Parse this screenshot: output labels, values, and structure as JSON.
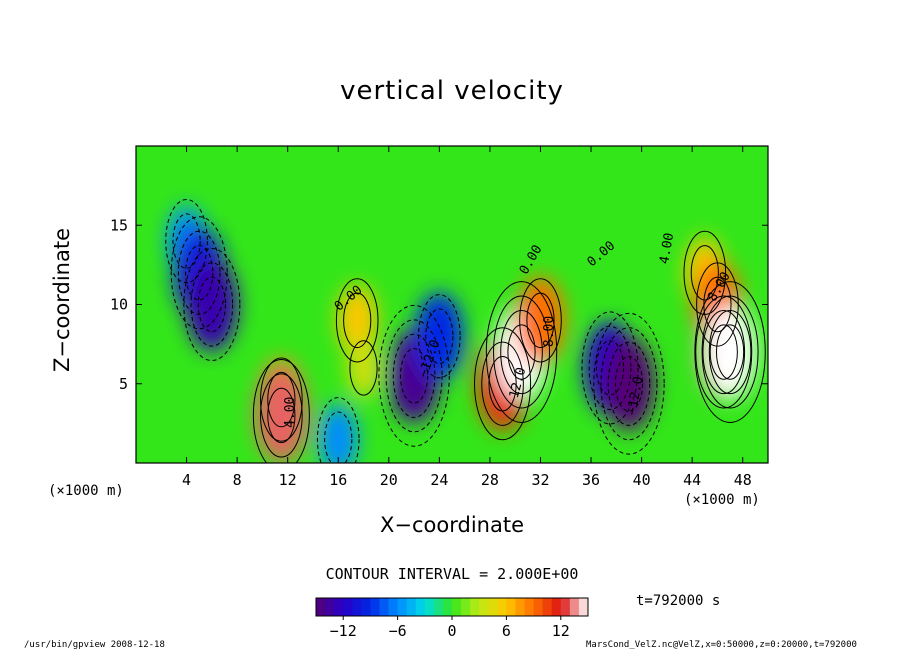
{
  "chart_data": {
    "type": "heatmap",
    "title": "vertical velocity",
    "xlabel": "X−coordinate",
    "ylabel": "Z−coordinate",
    "x_unit_left": "(×1000 m)",
    "x_unit_right": "(×1000 m)",
    "x_ticks": [
      4,
      8,
      12,
      16,
      20,
      24,
      28,
      32,
      36,
      40,
      44,
      48
    ],
    "y_ticks": [
      5,
      10,
      15
    ],
    "xlim": [
      0,
      50
    ],
    "ylim": [
      0,
      20
    ],
    "contour_interval_text": "CONTOUR INTERVAL = 2.000E+00",
    "colorbar": {
      "range": [
        -15,
        15
      ],
      "ticks": [
        "−12",
        "−6",
        "0",
        "6",
        "12"
      ],
      "tick_values": [
        -12,
        -6,
        0,
        6,
        12
      ]
    },
    "cells": [
      {
        "x": 4,
        "z": 14,
        "w": -6
      },
      {
        "x": 5,
        "z": 12,
        "w": -10
      },
      {
        "x": 6,
        "z": 10,
        "w": -13
      },
      {
        "x": 11.5,
        "z": 4,
        "w": 8
      },
      {
        "x": 11.5,
        "z": 3,
        "w": 13
      },
      {
        "x": 17.5,
        "z": 9,
        "w": 6
      },
      {
        "x": 18,
        "z": 6,
        "w": 4
      },
      {
        "x": 16,
        "z": 1.5,
        "w": -6
      },
      {
        "x": 22,
        "z": 5.5,
        "w": -14
      },
      {
        "x": 24,
        "z": 8,
        "w": -9
      },
      {
        "x": 29,
        "z": 5,
        "w": 11
      },
      {
        "x": 30.5,
        "z": 7,
        "w": 15
      },
      {
        "x": 32,
        "z": 9,
        "w": 9
      },
      {
        "x": 37.5,
        "z": 6,
        "w": -12
      },
      {
        "x": 39,
        "z": 5,
        "w": -15
      },
      {
        "x": 45,
        "z": 12,
        "w": 6
      },
      {
        "x": 46,
        "z": 10,
        "w": 9
      },
      {
        "x": 46.5,
        "z": 7,
        "w": 13
      },
      {
        "x": 47,
        "z": 7,
        "w": 15
      }
    ],
    "contour_labels": [
      {
        "text": "−12.0",
        "x": 23.5,
        "z": 6.5,
        "angle": -70
      },
      {
        "text": "12.0",
        "x": 30.5,
        "z": 5,
        "angle": -75
      },
      {
        "text": "8.00",
        "x": 33,
        "z": 8.3,
        "angle": -90
      },
      {
        "text": "−12.0",
        "x": 39.8,
        "z": 4.2,
        "angle": -80
      },
      {
        "text": "4.00",
        "x": 42.3,
        "z": 13.5,
        "angle": -80
      },
      {
        "text": "8.00",
        "x": 46.4,
        "z": 11,
        "angle": -60
      },
      {
        "text": "0.00",
        "x": 37,
        "z": 13,
        "angle": -40
      },
      {
        "text": "0.00",
        "x": 31.5,
        "z": 12.7,
        "angle": -60
      },
      {
        "text": "0.00",
        "x": 17,
        "z": 10.2,
        "angle": -40
      },
      {
        "text": "4.00",
        "x": 12.5,
        "z": 3.2,
        "angle": -90
      }
    ]
  },
  "time_label": "t=792000 s",
  "footer_left": "/usr/bin/gpview   2008-12-18",
  "footer_right": "MarsCond_VelZ.nc@VelZ,x=0:50000,z=0:20000,t=792000"
}
